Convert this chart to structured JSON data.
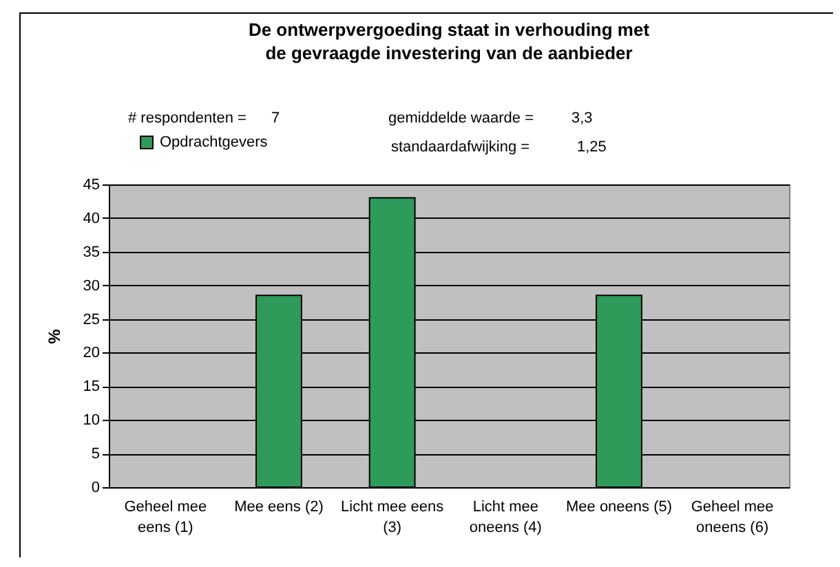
{
  "chart_data": {
    "type": "bar",
    "title": "De ontwerpvergoeding staat in verhouding met de gevraagde investering van de aanbieder",
    "ylabel": "%",
    "categories": [
      "Geheel mee eens (1)",
      "Mee eens (2)",
      "Licht mee eens (3)",
      "Licht mee oneens (4)",
      "Mee oneens (5)",
      "Geheel mee oneens (6)"
    ],
    "series": [
      {
        "name": "Opdrachtgevers",
        "color": "#2e9b5a",
        "values": [
          null,
          28.5,
          43,
          null,
          28.5,
          null
        ]
      }
    ],
    "ylim": [
      0,
      45
    ],
    "yticks": [
      0,
      5,
      10,
      15,
      20,
      25,
      30,
      35,
      40,
      45
    ],
    "grid": "y",
    "legend": "top left",
    "annotations": [
      "# respondenten =",
      "7",
      "gemiddelde waarde =",
      "3,3",
      "standaardafwijking =",
      "1,25"
    ]
  }
}
